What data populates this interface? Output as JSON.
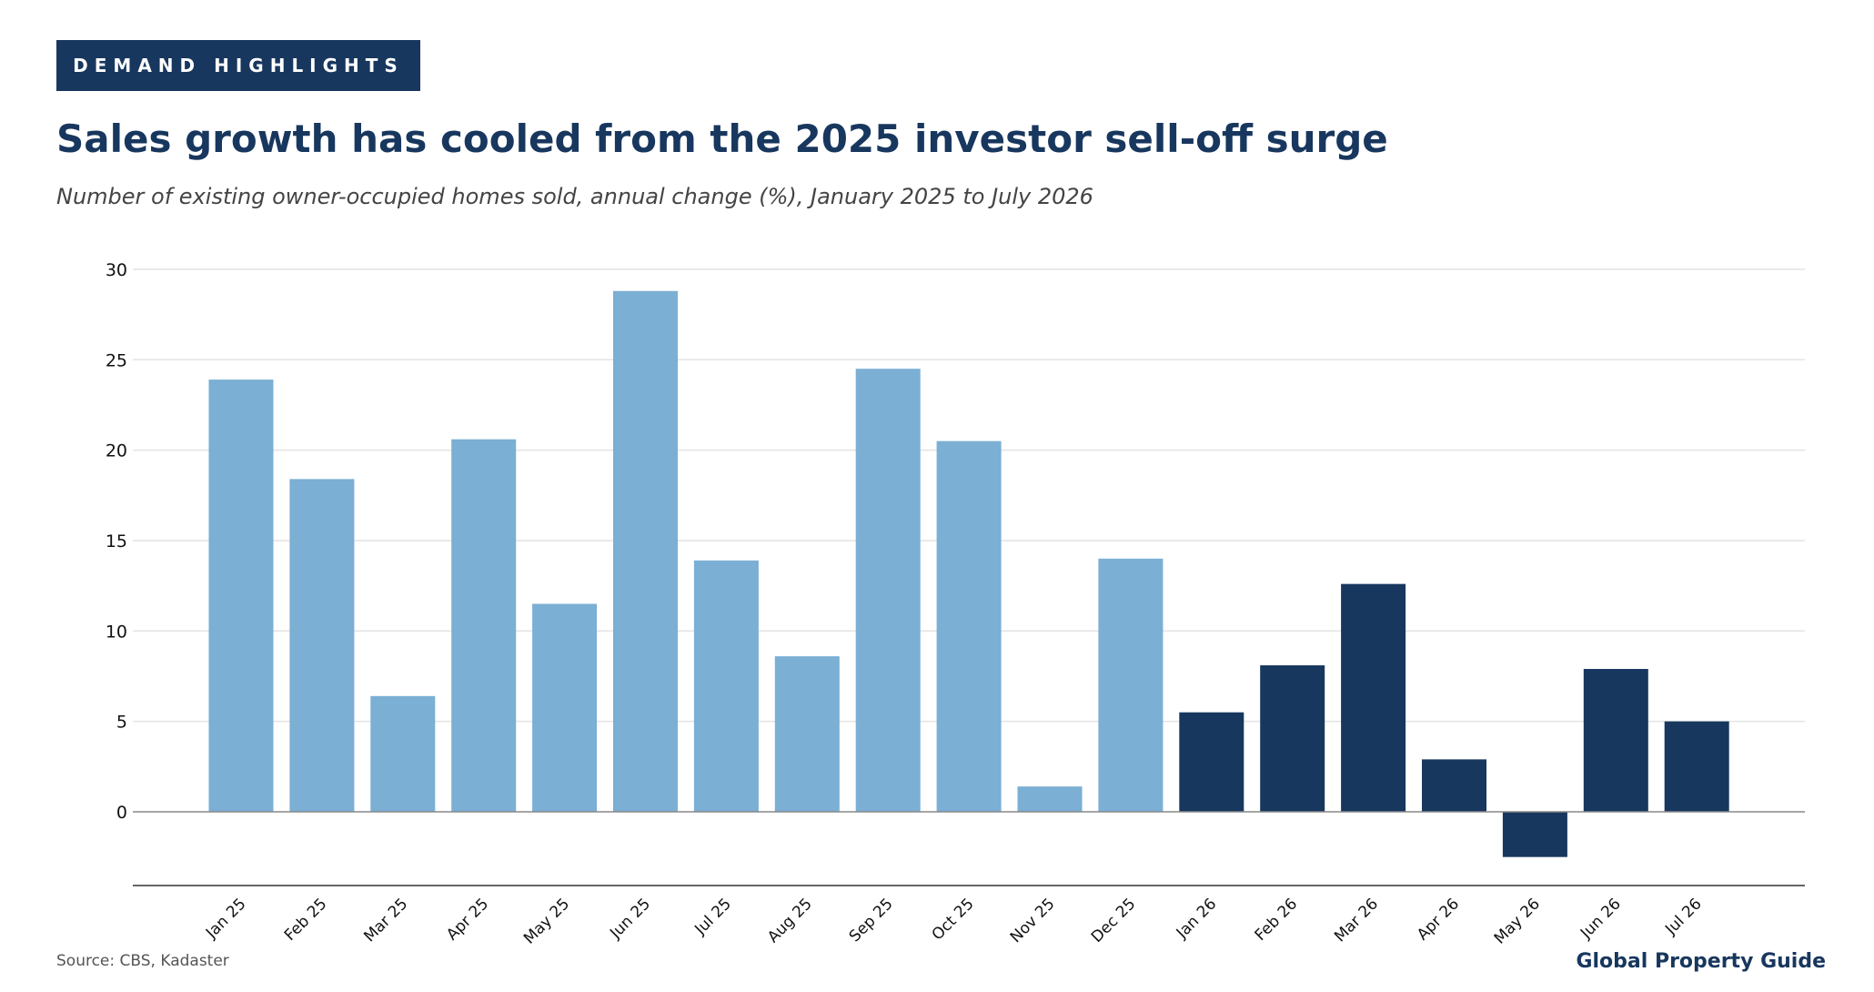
{
  "header": {
    "tag": "DEMAND HIGHLIGHTS",
    "title": "Sales growth has cooled from the 2025 investor sell-off surge",
    "subtitle": "Number of existing owner-occupied homes sold, annual change (%), January 2025 to July 2026"
  },
  "footer": {
    "source": "Source: CBS, Kadaster",
    "brand": "Global Property Guide"
  },
  "colors": {
    "bar_2025": "#7bafd4",
    "bar_2026": "#18375e",
    "grid": "#e3e3e3",
    "axis": "#333333"
  },
  "chart_data": {
    "type": "bar",
    "categories": [
      "Jan 25",
      "Feb 25",
      "Mar 25",
      "Apr 25",
      "May 25",
      "Jun 25",
      "Jul 25",
      "Aug 25",
      "Sep 25",
      "Oct 25",
      "Nov 25",
      "Dec 25",
      "Jan 26",
      "Feb 26",
      "Mar 26",
      "Apr 26",
      "May 26",
      "Jun 26",
      "Jul 26"
    ],
    "values": [
      23.9,
      18.4,
      6.4,
      20.6,
      11.5,
      28.8,
      13.9,
      8.6,
      24.5,
      20.5,
      1.4,
      14.0,
      5.5,
      8.1,
      12.6,
      2.9,
      -2.5,
      7.9,
      5.0
    ],
    "year": [
      2025,
      2025,
      2025,
      2025,
      2025,
      2025,
      2025,
      2025,
      2025,
      2025,
      2025,
      2025,
      2026,
      2026,
      2026,
      2026,
      2026,
      2026,
      2026
    ],
    "yticks": [
      0,
      5,
      10,
      15,
      20,
      25,
      30
    ],
    "ylim": [
      -4,
      30
    ],
    "grid": true,
    "xlabel": "",
    "ylabel": ""
  }
}
